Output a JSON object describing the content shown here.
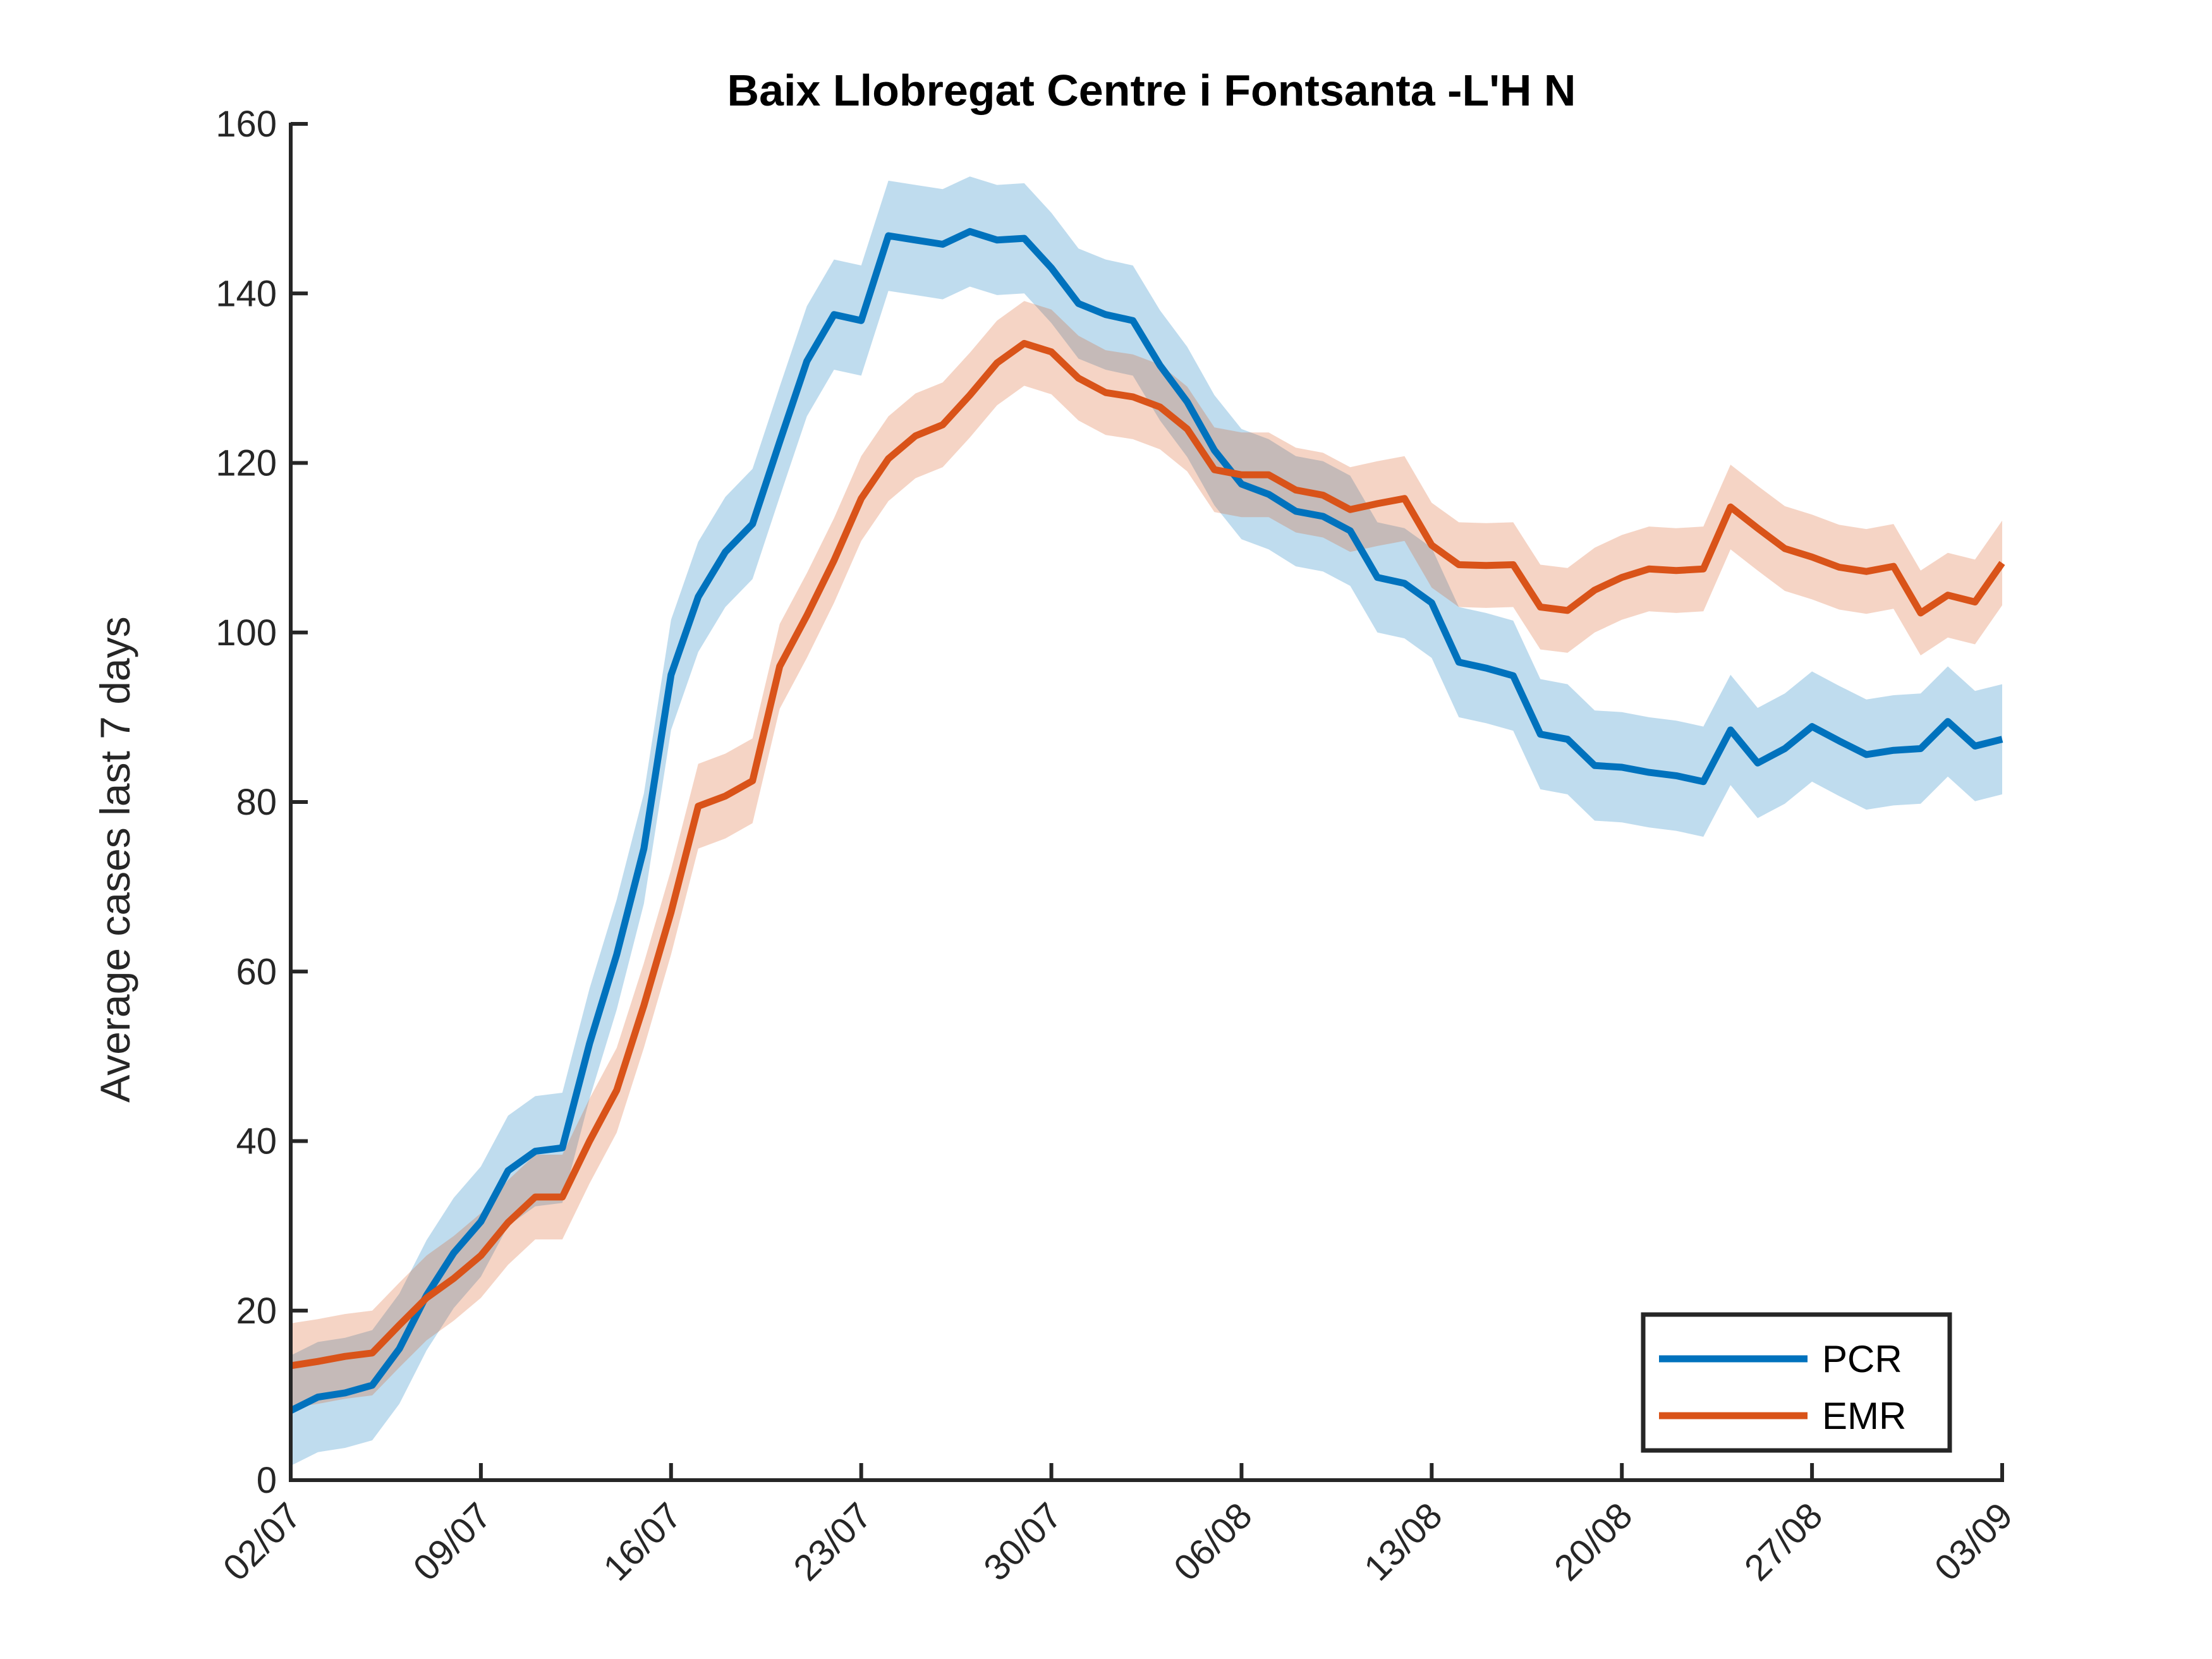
{
  "chart_data": {
    "type": "line",
    "title": "Baix Llobregat Centre i Fontsanta -L'H N",
    "xlabel": "",
    "ylabel": "Average cases last 7 days",
    "ylim": [
      0,
      160
    ],
    "yticks": [
      0,
      20,
      40,
      60,
      80,
      100,
      120,
      140,
      160
    ],
    "x_start": "02/07",
    "num_days": 64,
    "xtick_labels": [
      "02/07",
      "09/07",
      "16/07",
      "23/07",
      "30/07",
      "06/08",
      "13/08",
      "20/08",
      "27/08",
      "03/09"
    ],
    "legend_position": "bottom-right",
    "grid": false,
    "series": [
      {
        "name": "PCR",
        "color": "#0072BD",
        "band_halfwidth": 6.5,
        "values": [
          8.2,
          9.8,
          10.3,
          11.2,
          15.5,
          21.8,
          26.8,
          30.5,
          36.5,
          38.8,
          39.2,
          51.5,
          62.0,
          74.5,
          95.0,
          104.2,
          109.5,
          112.8,
          122.5,
          132.0,
          137.5,
          136.8,
          146.8,
          146.3,
          145.8,
          147.3,
          146.3,
          146.5,
          143.0,
          138.8,
          137.5,
          136.8,
          131.5,
          127.2,
          121.5,
          117.5,
          116.3,
          114.3,
          113.7,
          112.0,
          106.5,
          105.8,
          103.5,
          96.5,
          95.8,
          94.9,
          88.0,
          87.4,
          84.3,
          84.1,
          83.5,
          83.1,
          82.4,
          88.5,
          84.6,
          86.3,
          88.9,
          87.2,
          85.6,
          86.1,
          86.3,
          89.5,
          86.6,
          87.4
        ]
      },
      {
        "name": "EMR",
        "color": "#D95319",
        "band_halfwidth": 5.0,
        "values": [
          13.5,
          14.0,
          14.6,
          15.0,
          18.3,
          21.5,
          23.8,
          26.5,
          30.4,
          33.4,
          33.4,
          40.0,
          46.0,
          56.0,
          67.0,
          79.5,
          80.7,
          82.5,
          96.0,
          102.0,
          108.5,
          115.8,
          120.5,
          123.2,
          124.5,
          128.0,
          131.8,
          134.1,
          133.1,
          130.0,
          128.3,
          127.8,
          126.6,
          124.0,
          119.2,
          118.6,
          118.6,
          116.8,
          116.2,
          114.5,
          115.2,
          115.8,
          110.3,
          108.0,
          107.9,
          108.0,
          103.0,
          102.6,
          105.0,
          106.5,
          107.5,
          107.3,
          107.5,
          114.8,
          112.3,
          109.9,
          108.9,
          107.7,
          107.2,
          107.8,
          102.3,
          104.4,
          103.6,
          108.2
        ]
      }
    ]
  }
}
